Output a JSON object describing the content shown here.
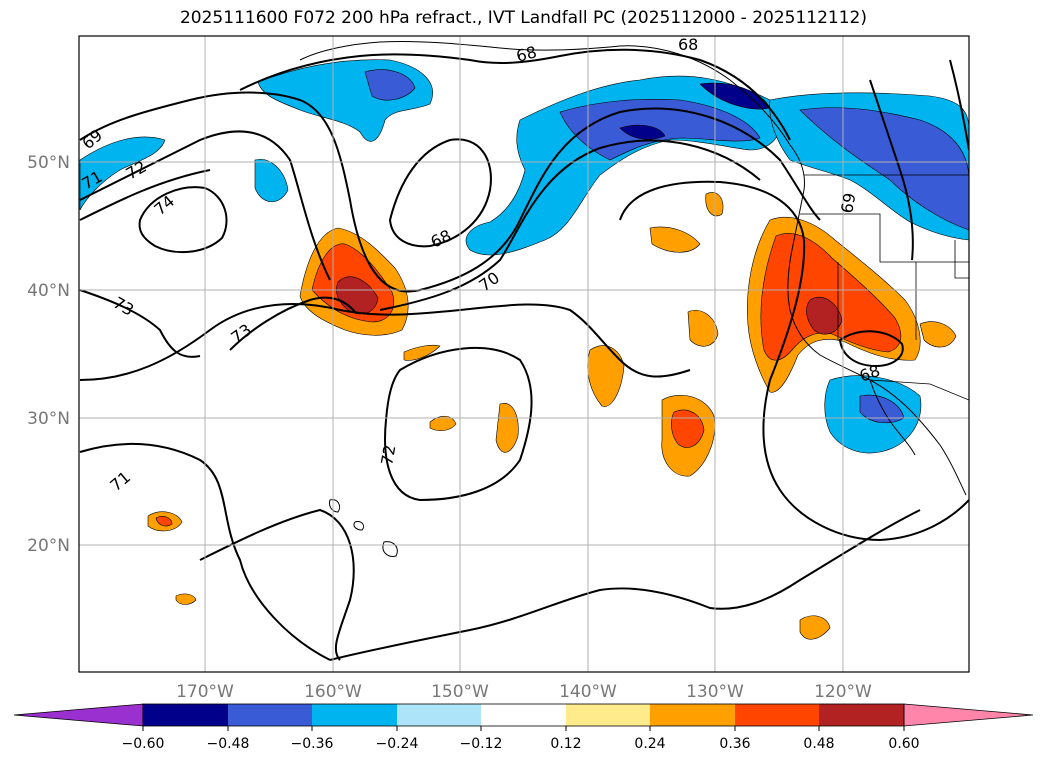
{
  "title": "2025111600 F072 200 hPa refract., IVT Landfall PC (2025112000 - 2025112112)",
  "lat_labels": [
    "50°N",
    "40°N",
    "30°N",
    "20°N"
  ],
  "lon_labels": [
    "170°W",
    "160°W",
    "150°W",
    "140°W",
    "130°W",
    "120°W"
  ],
  "contour_labels": [
    "68",
    "68",
    "68",
    "68",
    "69",
    "69",
    "70",
    "71",
    "71",
    "72",
    "72",
    "73",
    "73",
    "74"
  ],
  "colorbar": {
    "ticks": [
      "−0.60",
      "−0.48",
      "−0.36",
      "−0.24",
      "−0.12",
      "0.12",
      "0.24",
      "0.36",
      "0.48",
      "0.60"
    ],
    "colors": [
      "#9b30d0",
      "#00008b",
      "#3a5bd6",
      "#00b4f0",
      "#aee4fa",
      "#ffffff",
      "#ffea8c",
      "#ffa000",
      "#ff4500",
      "#b22222",
      "#ff85aa"
    ]
  }
}
